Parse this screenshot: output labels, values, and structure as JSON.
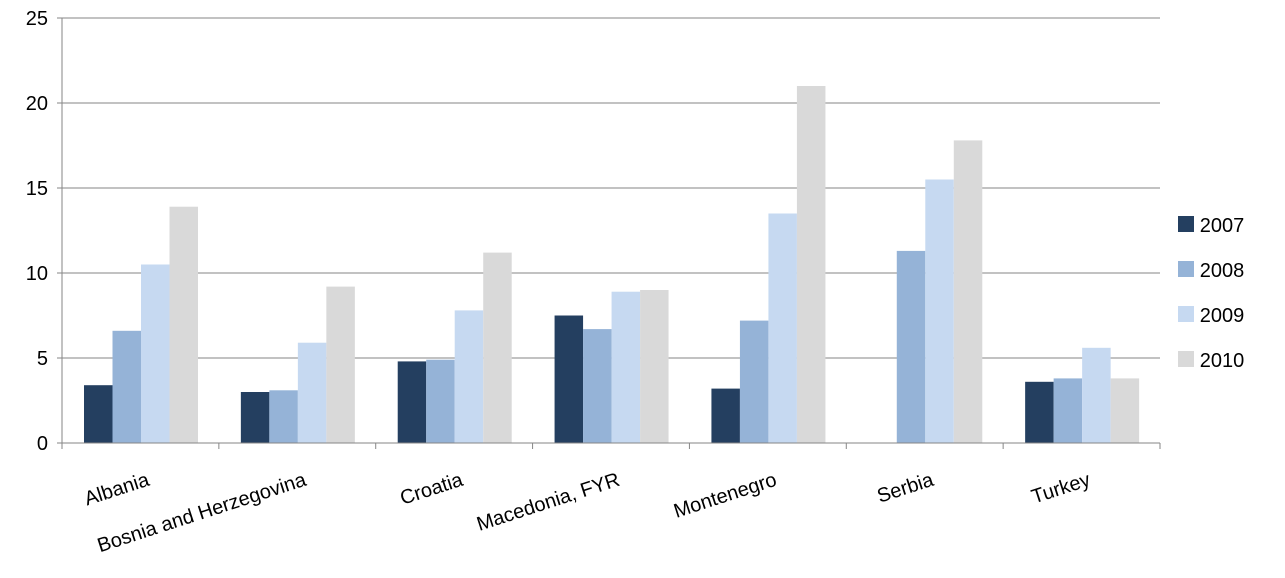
{
  "chart_data": {
    "type": "bar",
    "title": "",
    "xlabel": "",
    "ylabel": "",
    "ylim": [
      0,
      25
    ],
    "yticks": [
      0,
      5,
      10,
      15,
      20,
      25
    ],
    "grid": true,
    "legend_position": "right",
    "categories": [
      "Albania",
      "Bosnia and Herzegovina",
      "Croatia",
      "Macedonia, FYR",
      "Montenegro",
      "Serbia",
      "Turkey"
    ],
    "series": [
      {
        "name": "2007",
        "color": "#243F60",
        "values": [
          3.4,
          3.0,
          4.8,
          7.5,
          3.2,
          null,
          3.6
        ]
      },
      {
        "name": "2008",
        "color": "#95B3D7",
        "values": [
          6.6,
          3.1,
          4.9,
          6.7,
          7.2,
          11.3,
          3.8
        ]
      },
      {
        "name": "2009",
        "color": "#C6D9F1",
        "values": [
          10.5,
          5.9,
          7.8,
          8.9,
          13.5,
          15.5,
          5.6
        ]
      },
      {
        "name": "2010",
        "color": "#D9D9D9",
        "values": [
          13.9,
          9.2,
          11.2,
          9.0,
          21.0,
          17.8,
          3.8
        ]
      }
    ]
  }
}
